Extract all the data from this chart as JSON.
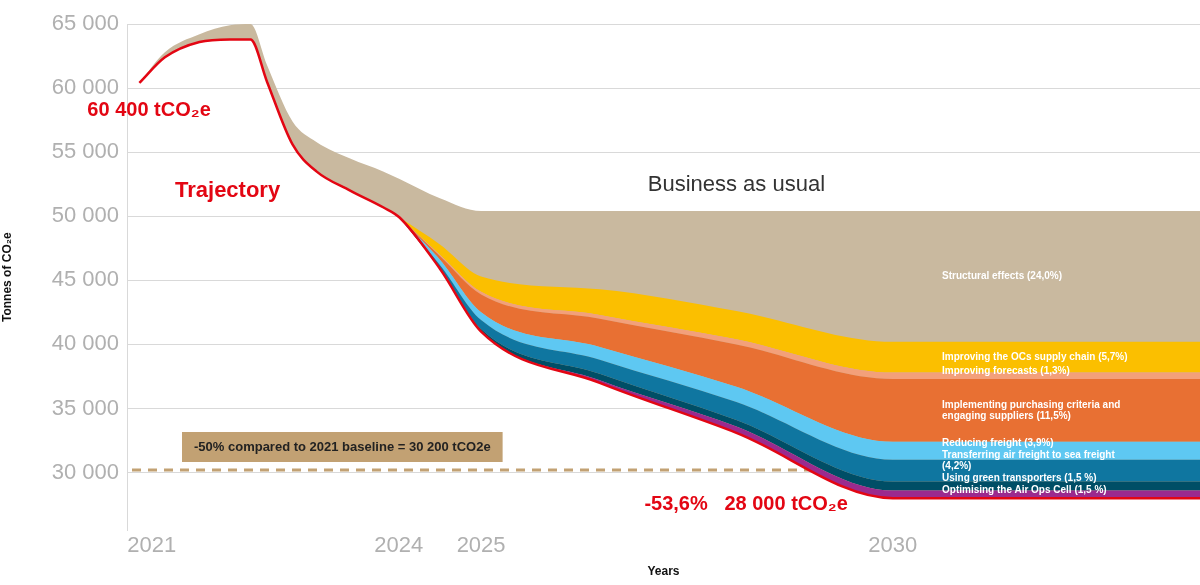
{
  "chart_data": {
    "type": "area",
    "legend": false,
    "grid": "y",
    "xlabel": "Years",
    "ylabel": "Tonnes of CO₂e",
    "x": [
      2020.85,
      2021.16,
      2021.58,
      2021.95,
      2022.2,
      2022.4,
      2022.71,
      2023.0,
      2023.41,
      2023.81,
      2024.01,
      2024.5,
      2025,
      2026.44,
      2028.1,
      2030,
      2033.73
    ],
    "xlim": [
      2020.7,
      2033.73
    ],
    "xticks": [
      2021,
      2024,
      2025,
      2030
    ],
    "ylim": [
      25500,
      65000
    ],
    "yticks": [
      {
        "value": 30000,
        "label": "30 000"
      },
      {
        "value": 35000,
        "label": "35 000"
      },
      {
        "value": 40000,
        "label": "40 000"
      },
      {
        "value": 45000,
        "label": "45 000"
      },
      {
        "value": 50000,
        "label": "50 000"
      },
      {
        "value": 55000,
        "label": "55 000"
      },
      {
        "value": 60000,
        "label": "60 000"
      },
      {
        "value": 65000,
        "label": "65 000"
      }
    ],
    "series": [
      {
        "name": "Trajectory",
        "type": "line",
        "color": "#e30613",
        "values": [
          60400,
          62400,
          63600,
          63800,
          63800,
          60500,
          55600,
          53500,
          52000,
          50700,
          49900,
          45900,
          41000,
          37000,
          33100,
          28000,
          28000
        ]
      },
      {
        "name": "Optimising the Air Ops Cell (1,5 %)",
        "color": "#9b2a8e",
        "values": [
          null,
          null,
          null,
          null,
          null,
          null,
          null,
          null,
          null,
          null,
          49900,
          45900,
          41000,
          37200,
          33600,
          28600,
          28600
        ]
      },
      {
        "name": "Using green transporters (1,5 %)",
        "color": "#004e66",
        "values": [
          null,
          null,
          null,
          null,
          null,
          null,
          null,
          null,
          null,
          null,
          49900,
          46000,
          41200,
          37700,
          34100,
          29300,
          29300
        ]
      },
      {
        "name": "Transferring air freight to sea freight (4,2%)",
        "color": "#0f76a0",
        "values": [
          null,
          null,
          null,
          null,
          null,
          null,
          null,
          null,
          null,
          null,
          49900,
          46200,
          41900,
          38800,
          35500,
          31000,
          31000
        ]
      },
      {
        "name": "Reducing freight (3,9%)",
        "color": "#5ec8f2",
        "values": [
          null,
          null,
          null,
          null,
          null,
          null,
          null,
          null,
          null,
          null,
          49900,
          46600,
          42500,
          39800,
          36700,
          32400,
          32400
        ]
      },
      {
        "name": "Implementing purchasing criteria and engaging suppliers (11,5%)",
        "color": "#e87033",
        "values": [
          null,
          null,
          null,
          null,
          null,
          null,
          null,
          null,
          null,
          null,
          49900,
          46900,
          43900,
          42000,
          40000,
          37300,
          37300
        ]
      },
      {
        "name": "Improving forecasts (1,3%)",
        "color": "#f3a07a",
        "values": [
          null,
          null,
          null,
          null,
          null,
          null,
          null,
          null,
          null,
          null,
          49900,
          47000,
          44100,
          42300,
          40400,
          37800,
          37800
        ]
      },
      {
        "name": "Improving the OCs supply chain (5,7%)",
        "color": "#fbbf00",
        "values": [
          null,
          null,
          null,
          null,
          null,
          null,
          null,
          null,
          null,
          null,
          49900,
          47800,
          45300,
          44300,
          42600,
          40200,
          40200
        ]
      },
      {
        "name": "Structural effects (24,0%)",
        "color": "#c9b99f",
        "values": [
          60400,
          62800,
          64200,
          64900,
          65000,
          61800,
          57400,
          55800,
          54500,
          53500,
          52900,
          51400,
          50400,
          50400,
          50400,
          50400,
          50400
        ]
      }
    ],
    "ref_lines": [
      {
        "axis": "y",
        "value": 30200,
        "label": "-50% compared to 2021 baseline = 30 200 tCO2e",
        "color": "#c2a173",
        "line_style": "dashed"
      }
    ],
    "annotations": [
      {
        "text": "60 400 tCO₂e",
        "x": 2020.85,
        "y": 60400
      },
      {
        "text": "Business as usual",
        "x": 2028.1,
        "y": 50400
      },
      {
        "text": "-53,6%   28 000 tCO₂e",
        "x": 2030,
        "y": 28000
      }
    ]
  }
}
